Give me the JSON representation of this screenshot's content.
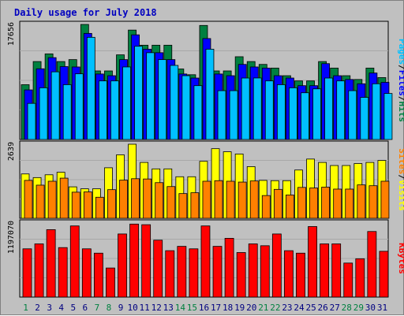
{
  "chart_data": {
    "type": "bar",
    "title": "Daily usage for July 2018",
    "days": [
      "1",
      "2",
      "3",
      "4",
      "5",
      "6",
      "7",
      "8",
      "9",
      "10",
      "11",
      "12",
      "13",
      "14",
      "15",
      "16",
      "17",
      "18",
      "19",
      "20",
      "21",
      "22",
      "23",
      "24",
      "25",
      "26",
      "27",
      "28",
      "29",
      "30",
      "31"
    ],
    "weekend_days": [
      "1",
      "7",
      "8",
      "14",
      "15",
      "21",
      "22",
      "28",
      "29"
    ],
    "panels": {
      "hits_files_pages": {
        "ymax_label": "17656",
        "ymax": 17656,
        "axis_labels": [
          "Pages",
          "Files",
          "Hits"
        ],
        "series": [
          {
            "name": "Hits",
            "color": "#008040",
            "values": [
              8410,
              11960,
              13140,
              11960,
              12260,
              17656,
              10520,
              10520,
              12990,
              16790,
              14470,
              14470,
              14470,
              10820,
              9940,
              17500,
              10520,
              10520,
              12700,
              11960,
              11520,
              10960,
              9790,
              8990,
              8990,
              11960,
              10960,
              9790,
              9210,
              10960,
              9500
            ]
          },
          {
            "name": "Files",
            "color": "#0000ff",
            "values": [
              7610,
              10850,
              12560,
              11190,
              11130,
              16280,
              10050,
              9790,
              12260,
              16060,
              13860,
              13320,
              12260,
              10050,
              9430,
              15490,
              10050,
              9790,
              11520,
              11130,
              10960,
              9790,
              9430,
              8260,
              8260,
              11640,
              9790,
              9210,
              8550,
              10200,
              8770
            ]
          },
          {
            "name": "Pages",
            "color": "#00c0ff",
            "values": [
              5540,
              7930,
              10380,
              8410,
              10080,
              15680,
              8990,
              8990,
              11130,
              14310,
              13320,
              12260,
              11370,
              9790,
              8260,
              13860,
              7490,
              7490,
              9430,
              9440,
              8990,
              8410,
              7930,
              7170,
              7770,
              9430,
              8990,
              7490,
              6460,
              8550,
              7060
            ]
          }
        ]
      },
      "sites_visits": {
        "ymax_label": "2639",
        "ymax": 2639,
        "axis_labels": [
          "Sites",
          "Visits"
        ],
        "series": [
          {
            "name": "Visits",
            "color": "#ffff00",
            "values": [
              1580,
              1450,
              1550,
              1640,
              1120,
              1050,
              1050,
              1800,
              2260,
              2639,
              1990,
              1760,
              1760,
              1480,
              1480,
              2030,
              2480,
              2370,
              2290,
              1840,
              1350,
              1340,
              1340,
              1720,
              2110,
              1990,
              1880,
              1880,
              1950,
              1990,
              2060
            ]
          },
          {
            "name": "Sites",
            "color": "#ff8000",
            "values": [
              1350,
              1180,
              1320,
              1430,
              930,
              940,
              750,
              1020,
              1360,
              1410,
              1400,
              1270,
              1130,
              880,
              910,
              1320,
              1340,
              1320,
              1290,
              1330,
              810,
              1030,
              830,
              1100,
              1080,
              1110,
              1040,
              1040,
              1190,
              1160,
              1320
            ]
          }
        ]
      },
      "kbytes": {
        "ymax_label": "1197070",
        "ymax": 1197070,
        "axis_labels": [
          "KBytes"
        ],
        "series": [
          {
            "name": "KBytes",
            "color": "#ff0000",
            "values": [
              780000,
              860000,
              1090000,
              800000,
              1150000,
              780000,
              710000,
              470000,
              1020000,
              1180000,
              1170000,
              920000,
              750000,
              820000,
              780000,
              1150000,
              820000,
              950000,
              720000,
              860000,
              830000,
              1020000,
              750000,
              710000,
              1140000,
              860000,
              860000,
              550000,
              620000,
              1060000,
              740000
            ]
          }
        ]
      }
    }
  }
}
